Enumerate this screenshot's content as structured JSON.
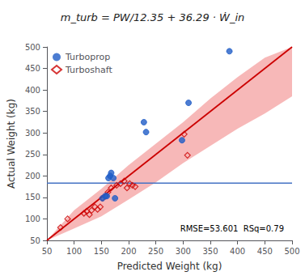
{
  "chart_data": {
    "type": "scatter",
    "title": "m_turb = PW/12.35 + 36.29 · Ẇ_in",
    "xlabel": "Predicted Weight (kg)",
    "ylabel": "Actual Weight (kg)",
    "xlim": [
      50,
      500
    ],
    "ylim": [
      50,
      500
    ],
    "xticks": [
      50,
      100,
      150,
      200,
      250,
      300,
      350,
      400,
      450,
      500
    ],
    "yticks": [
      50,
      100,
      150,
      200,
      250,
      300,
      350,
      400,
      450,
      500
    ],
    "grid": false,
    "legend": "upper left",
    "annotation": "RMSE=53.601  RSq=0.79",
    "series": [
      {
        "type": "band",
        "color": "#f4a0a0",
        "x": [
          50,
          100,
          150,
          200,
          250,
          300,
          350,
          400,
          450,
          500
        ],
        "lower": [
          50,
          78,
          106,
          145,
          185,
          230,
          270,
          310,
          345,
          385
        ],
        "upper": [
          50,
          120,
          170,
          225,
          275,
          325,
          380,
          430,
          475,
          500
        ]
      },
      {
        "type": "line",
        "color": "#cc0000",
        "x": [
          50,
          500
        ],
        "values": [
          50,
          500
        ]
      },
      {
        "type": "hline",
        "color": "#4472c4",
        "values": [
          183
        ]
      },
      {
        "name": "Turboshaft",
        "type": "scatter",
        "marker": "diamond-open",
        "color": "#cc0000",
        "x": [
          75,
          88,
          118,
          123,
          128,
          132,
          138,
          143,
          148,
          152,
          158,
          162,
          168,
          178,
          185,
          192,
          197,
          202,
          207,
          212,
          302,
          308
        ],
        "values": [
          80,
          100,
          113,
          118,
          110,
          120,
          128,
          122,
          128,
          148,
          153,
          162,
          172,
          178,
          182,
          188,
          172,
          182,
          178,
          175,
          297,
          248
        ]
      },
      {
        "name": "Turboprop",
        "type": "scatter",
        "marker": "circle",
        "color": "#1f5cc7",
        "x": [
          152,
          157,
          160,
          163,
          166,
          168,
          172,
          175,
          228,
          232,
          298,
          310,
          385
        ],
        "values": [
          148,
          153,
          153,
          195,
          200,
          207,
          195,
          148,
          325,
          302,
          283,
          370,
          490
        ]
      }
    ]
  }
}
